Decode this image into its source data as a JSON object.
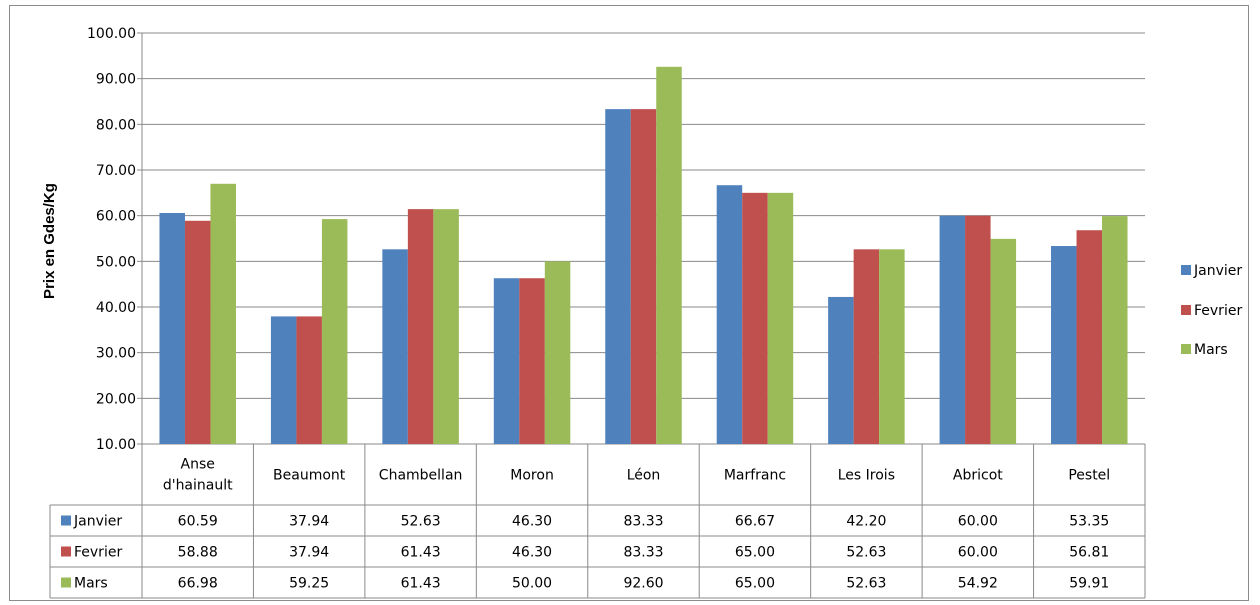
{
  "chart_data": {
    "type": "bar",
    "title": "",
    "xlabel": "",
    "ylabel": "Prix en Gdes/Kg",
    "ylim": [
      10,
      100
    ],
    "ytick_step": 10,
    "ytick_labels": [
      "10.00",
      "20.00",
      "30.00",
      "40.00",
      "50.00",
      "60.00",
      "70.00",
      "80.00",
      "90.00",
      "100.00"
    ],
    "grid": true,
    "legend_position": "right",
    "data_table": true,
    "categories": [
      "Anse d'hainault",
      "Beaumont",
      "Chambellan",
      "Moron",
      "Léon",
      "Marfranc",
      "Les Irois",
      "Abricot",
      "Pestel"
    ],
    "series": [
      {
        "name": "Janvier",
        "color": "#4F81BD",
        "values": [
          60.59,
          37.94,
          52.63,
          46.3,
          83.33,
          66.67,
          42.2,
          60.0,
          53.35
        ],
        "labels": [
          "60.59",
          "37.94",
          "52.63",
          "46.30",
          "83.33",
          "66.67",
          "42.20",
          "60.00",
          "53.35"
        ]
      },
      {
        "name": "Fevrier",
        "color": "#C0504D",
        "values": [
          58.88,
          37.94,
          61.43,
          46.3,
          83.33,
          65.0,
          52.63,
          60.0,
          56.81
        ],
        "labels": [
          "58.88",
          "37.94",
          "61.43",
          "46.30",
          "83.33",
          "65.00",
          "52.63",
          "60.00",
          "56.81"
        ]
      },
      {
        "name": "Mars",
        "color": "#9BBB59",
        "values": [
          66.98,
          59.25,
          61.43,
          50.0,
          92.6,
          65.0,
          52.63,
          54.92,
          59.91
        ],
        "labels": [
          "66.98",
          "59.25",
          "61.43",
          "50.00",
          "92.60",
          "65.00",
          "52.63",
          "54.92",
          "59.91"
        ]
      }
    ]
  }
}
